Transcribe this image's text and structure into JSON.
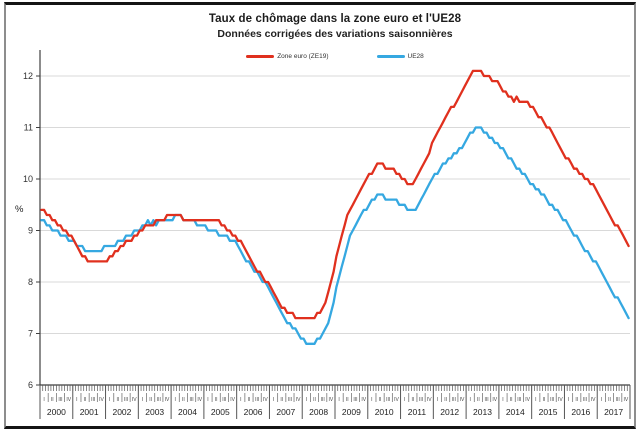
{
  "window": {
    "background": "#ffffff",
    "frame_color": "#141414",
    "side_border_color": "#8d8d8d"
  },
  "chart_data": {
    "type": "line",
    "title": "Taux de chômage dans la zone euro et l'UE28",
    "subtitle": "Données corrigées des variations saisonnières",
    "ylabel": "%",
    "ylim": [
      6,
      12.5
    ],
    "yticks": [
      6,
      7,
      8,
      9,
      10,
      11,
      12
    ],
    "grid": true,
    "legend_position": "top-center",
    "x_unit": "month",
    "x_start": "2000-01",
    "x_end": "2017-12",
    "years": [
      "2000",
      "2001",
      "2002",
      "2003",
      "2004",
      "2005",
      "2006",
      "2007",
      "2008",
      "2009",
      "2010",
      "2011",
      "2012",
      "2013",
      "2014",
      "2015",
      "2016",
      "2017"
    ],
    "quarters": [
      "I",
      "II",
      "III",
      "IV"
    ],
    "colors": {
      "axis": "#3f3f3f",
      "grid": "#d9d9d9",
      "tick": "#555555",
      "text": "#333333"
    },
    "series": [
      {
        "name": "Zone euro (ZE19)",
        "color": "#e0301e",
        "values": [
          9.4,
          9.4,
          9.3,
          9.3,
          9.2,
          9.2,
          9.1,
          9.1,
          9.0,
          9.0,
          8.9,
          8.9,
          8.8,
          8.7,
          8.6,
          8.5,
          8.5,
          8.4,
          8.4,
          8.4,
          8.4,
          8.4,
          8.4,
          8.4,
          8.4,
          8.5,
          8.5,
          8.6,
          8.6,
          8.7,
          8.7,
          8.8,
          8.8,
          8.8,
          8.9,
          8.9,
          9.0,
          9.0,
          9.1,
          9.1,
          9.1,
          9.1,
          9.2,
          9.2,
          9.2,
          9.2,
          9.3,
          9.3,
          9.3,
          9.3,
          9.3,
          9.3,
          9.2,
          9.2,
          9.2,
          9.2,
          9.2,
          9.2,
          9.2,
          9.2,
          9.2,
          9.2,
          9.2,
          9.2,
          9.2,
          9.2,
          9.1,
          9.1,
          9.0,
          9.0,
          8.9,
          8.9,
          8.8,
          8.8,
          8.7,
          8.6,
          8.5,
          8.4,
          8.3,
          8.2,
          8.2,
          8.1,
          8.0,
          8.0,
          7.9,
          7.8,
          7.7,
          7.6,
          7.5,
          7.5,
          7.4,
          7.4,
          7.4,
          7.3,
          7.3,
          7.3,
          7.3,
          7.3,
          7.3,
          7.3,
          7.3,
          7.4,
          7.4,
          7.5,
          7.6,
          7.8,
          8.0,
          8.2,
          8.5,
          8.7,
          8.9,
          9.1,
          9.3,
          9.4,
          9.5,
          9.6,
          9.7,
          9.8,
          9.9,
          10.0,
          10.1,
          10.1,
          10.2,
          10.3,
          10.3,
          10.3,
          10.2,
          10.2,
          10.2,
          10.2,
          10.1,
          10.1,
          10.0,
          10.0,
          9.9,
          9.9,
          9.9,
          10.0,
          10.1,
          10.2,
          10.3,
          10.4,
          10.5,
          10.7,
          10.8,
          10.9,
          11.0,
          11.1,
          11.2,
          11.3,
          11.4,
          11.4,
          11.5,
          11.6,
          11.7,
          11.8,
          11.9,
          12.0,
          12.1,
          12.1,
          12.1,
          12.1,
          12.0,
          12.0,
          12.0,
          11.9,
          11.9,
          11.9,
          11.8,
          11.7,
          11.7,
          11.6,
          11.6,
          11.5,
          11.6,
          11.5,
          11.5,
          11.5,
          11.5,
          11.4,
          11.4,
          11.3,
          11.2,
          11.2,
          11.1,
          11.0,
          11.0,
          10.9,
          10.8,
          10.7,
          10.6,
          10.5,
          10.4,
          10.4,
          10.3,
          10.2,
          10.2,
          10.1,
          10.1,
          10.0,
          10.0,
          9.9,
          9.9,
          9.8,
          9.7,
          9.6,
          9.5,
          9.4,
          9.3,
          9.2,
          9.1,
          9.1,
          9.0,
          8.9,
          8.8,
          8.7
        ]
      },
      {
        "name": "UE28",
        "color": "#35a8e1",
        "values": [
          9.2,
          9.2,
          9.1,
          9.1,
          9.0,
          9.0,
          9.0,
          8.9,
          8.9,
          8.9,
          8.8,
          8.8,
          8.8,
          8.7,
          8.7,
          8.7,
          8.6,
          8.6,
          8.6,
          8.6,
          8.6,
          8.6,
          8.6,
          8.7,
          8.7,
          8.7,
          8.7,
          8.7,
          8.8,
          8.8,
          8.8,
          8.9,
          8.9,
          8.9,
          9.0,
          9.0,
          9.0,
          9.1,
          9.1,
          9.2,
          9.1,
          9.2,
          9.1,
          9.2,
          9.2,
          9.2,
          9.2,
          9.2,
          9.2,
          9.3,
          9.3,
          9.3,
          9.2,
          9.2,
          9.2,
          9.2,
          9.2,
          9.1,
          9.1,
          9.1,
          9.1,
          9.0,
          9.0,
          9.0,
          9.0,
          8.9,
          8.9,
          8.9,
          8.9,
          8.8,
          8.8,
          8.8,
          8.7,
          8.6,
          8.5,
          8.4,
          8.4,
          8.3,
          8.2,
          8.2,
          8.1,
          8.0,
          8.0,
          7.9,
          7.8,
          7.7,
          7.6,
          7.5,
          7.4,
          7.3,
          7.2,
          7.2,
          7.1,
          7.1,
          7.0,
          6.9,
          6.9,
          6.8,
          6.8,
          6.8,
          6.8,
          6.9,
          6.9,
          7.0,
          7.1,
          7.2,
          7.4,
          7.6,
          7.9,
          8.1,
          8.3,
          8.5,
          8.7,
          8.9,
          9.0,
          9.1,
          9.2,
          9.3,
          9.4,
          9.4,
          9.5,
          9.6,
          9.6,
          9.7,
          9.7,
          9.7,
          9.6,
          9.6,
          9.6,
          9.6,
          9.6,
          9.5,
          9.5,
          9.5,
          9.4,
          9.4,
          9.4,
          9.4,
          9.5,
          9.6,
          9.7,
          9.8,
          9.9,
          10.0,
          10.1,
          10.1,
          10.2,
          10.3,
          10.3,
          10.4,
          10.4,
          10.5,
          10.5,
          10.6,
          10.6,
          10.7,
          10.8,
          10.9,
          10.9,
          11.0,
          11.0,
          11.0,
          10.9,
          10.9,
          10.8,
          10.8,
          10.7,
          10.7,
          10.6,
          10.6,
          10.5,
          10.4,
          10.4,
          10.3,
          10.2,
          10.2,
          10.1,
          10.1,
          10.0,
          9.9,
          9.9,
          9.8,
          9.8,
          9.7,
          9.7,
          9.6,
          9.5,
          9.5,
          9.4,
          9.4,
          9.3,
          9.2,
          9.2,
          9.1,
          9.0,
          8.9,
          8.9,
          8.8,
          8.7,
          8.6,
          8.6,
          8.5,
          8.4,
          8.4,
          8.3,
          8.2,
          8.1,
          8.0,
          7.9,
          7.8,
          7.7,
          7.7,
          7.6,
          7.5,
          7.4,
          7.3
        ]
      }
    ]
  }
}
